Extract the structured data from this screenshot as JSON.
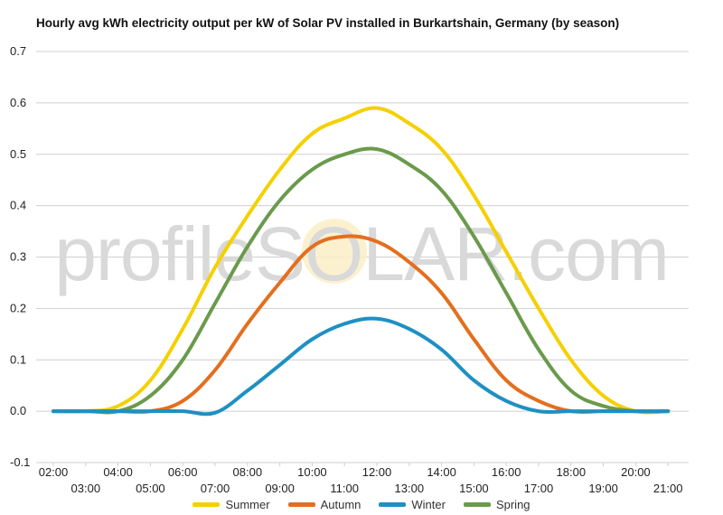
{
  "chart_data": {
    "type": "line",
    "title": "Hourly avg kWh electricity output per kW of Solar PV installed in Burkartshain, Germany (by season)",
    "xlabel": "",
    "ylabel": "",
    "ylim": [
      -0.1,
      0.7
    ],
    "yticks": [
      "-0.1",
      "0.0",
      "0.1",
      "0.2",
      "0.3",
      "0.4",
      "0.5",
      "0.6",
      "0.7"
    ],
    "grid": true,
    "legend_position": "bottom",
    "watermark": "profileSOLAR.com",
    "x": [
      "02:00",
      "03:00",
      "04:00",
      "05:00",
      "06:00",
      "07:00",
      "08:00",
      "09:00",
      "10:00",
      "11:00",
      "12:00",
      "13:00",
      "14:00",
      "15:00",
      "16:00",
      "17:00",
      "18:00",
      "19:00",
      "20:00",
      "21:00"
    ],
    "series": [
      {
        "name": "Summer",
        "color": "#f5d000",
        "values": [
          0,
          0,
          0.01,
          0.06,
          0.16,
          0.28,
          0.38,
          0.47,
          0.54,
          0.57,
          0.59,
          0.56,
          0.51,
          0.42,
          0.31,
          0.2,
          0.1,
          0.03,
          0,
          0
        ]
      },
      {
        "name": "Autumn",
        "color": "#e36f1e",
        "values": [
          0,
          0,
          0,
          0,
          0.02,
          0.08,
          0.17,
          0.25,
          0.32,
          0.34,
          0.33,
          0.29,
          0.23,
          0.14,
          0.06,
          0.02,
          0,
          0,
          0,
          0
        ]
      },
      {
        "name": "Winter",
        "color": "#1e90c3",
        "values": [
          0,
          0,
          0,
          0,
          0,
          -0.003,
          0.04,
          0.09,
          0.14,
          0.17,
          0.18,
          0.16,
          0.12,
          0.06,
          0.02,
          0,
          0,
          0,
          0,
          0
        ]
      },
      {
        "name": "Spring",
        "color": "#6a9a4b",
        "values": [
          0,
          0,
          0,
          0.03,
          0.1,
          0.21,
          0.32,
          0.41,
          0.47,
          0.5,
          0.51,
          0.48,
          0.43,
          0.34,
          0.23,
          0.12,
          0.04,
          0.01,
          0,
          0
        ]
      }
    ]
  }
}
